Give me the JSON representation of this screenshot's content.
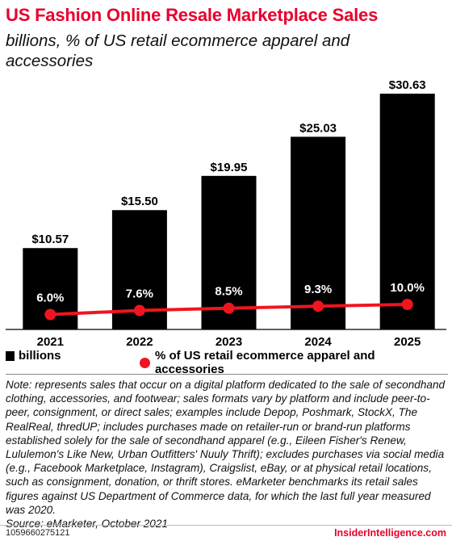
{
  "header": {
    "title": "US Fashion Online Resale Marketplace Sales",
    "subtitle": "billions, % of US retail ecommerce apparel and accessories"
  },
  "legend": {
    "bars_label": "billions",
    "line_label": "% of US retail ecommerce apparel and accessories"
  },
  "colors": {
    "bar": "#000000",
    "line": "#f0141e",
    "title": "#e8002d"
  },
  "chart_data": {
    "type": "bar",
    "title": "US Fashion Online Resale Marketplace Sales",
    "subtitle": "billions, % of US retail ecommerce apparel and accessories",
    "categories": [
      "2021",
      "2022",
      "2023",
      "2024",
      "2025"
    ],
    "series": [
      {
        "name": "billions",
        "type": "bar",
        "values": [
          10.57,
          15.5,
          19.95,
          25.03,
          30.63
        ],
        "labels": [
          "$10.57",
          "$15.50",
          "$19.95",
          "$25.03",
          "$30.63"
        ]
      },
      {
        "name": "% of US retail ecommerce apparel and accessories",
        "type": "line",
        "values": [
          6.0,
          7.6,
          8.5,
          9.3,
          10.0
        ],
        "labels": [
          "6.0%",
          "7.6%",
          "8.5%",
          "9.3%",
          "10.0%"
        ]
      }
    ],
    "legend_position": "bottom",
    "grid": false
  },
  "notes": {
    "note": "Note: represents sales that occur on a digital platform dedicated to the sale of secondhand clothing, accessories, and footwear; sales formats vary by platform and include peer-to-peer, consignment, or direct sales; examples include Depop, Poshmark, StockX, The RealReal, thredUP; includes purchases made on retailer-run or brand-run platforms established solely for the sale of secondhand apparel (e.g., Eileen Fisher's Renew, Lululemon's Like New, Urban Outfitters' Nuuly Thrift); excludes purchases via social media (e.g., Facebook Marketplace, Instagram), Craigslist, eBay, or at physical retail locations, such as consignment, donation, or thrift stores. eMarketer benchmarks its retail sales figures against US Department of Commerce data, for which the last full year measured was 2020.",
    "source": "Source: eMarketer, October 2021"
  },
  "footer": {
    "chart_id": "1059660275121",
    "brand": "InsiderIntelligence.com"
  }
}
